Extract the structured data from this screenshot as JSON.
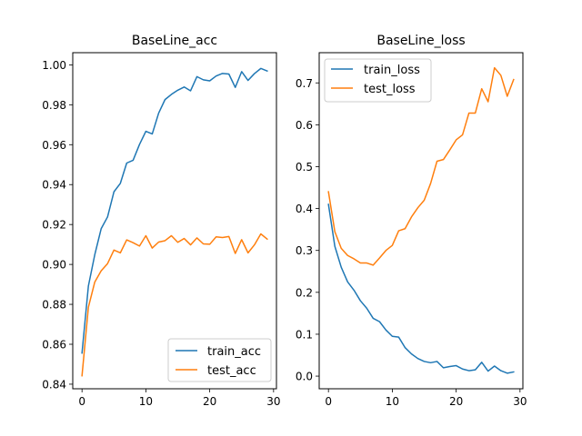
{
  "chart_data": [
    {
      "type": "line",
      "title": "BaseLine_acc",
      "xlabel": "",
      "ylabel": "",
      "xlim": [
        -1.45,
        30.45
      ],
      "ylim": [
        0.8377,
        1.0061
      ],
      "xticks": [
        0,
        10,
        20,
        30
      ],
      "yticks": [
        0.84,
        0.86,
        0.88,
        0.9,
        0.92,
        0.94,
        0.96,
        0.98,
        1.0
      ],
      "ytick_labels": [
        "0.84",
        "0.86",
        "0.88",
        "0.90",
        "0.92",
        "0.94",
        "0.96",
        "0.98",
        "1.00"
      ],
      "grid": false,
      "legend": "lower-right",
      "x": [
        0,
        1,
        2,
        3,
        4,
        5,
        6,
        7,
        8,
        9,
        10,
        11,
        12,
        13,
        14,
        15,
        16,
        17,
        18,
        19,
        20,
        21,
        22,
        23,
        24,
        25,
        26,
        27,
        28,
        29
      ],
      "series": [
        {
          "name": "train_acc",
          "color": "#1f77b4",
          "values": [
            0.8556,
            0.8892,
            0.9049,
            0.9179,
            0.9238,
            0.9364,
            0.9406,
            0.9508,
            0.9522,
            0.9601,
            0.9667,
            0.9654,
            0.9758,
            0.9826,
            0.9852,
            0.9873,
            0.9889,
            0.987,
            0.9941,
            0.9925,
            0.992,
            0.9944,
            0.9957,
            0.9954,
            0.9887,
            0.9966,
            0.9922,
            0.9956,
            0.9982,
            0.9969
          ]
        },
        {
          "name": "test_acc",
          "color": "#ff7f0e",
          "values": [
            0.8442,
            0.8786,
            0.8912,
            0.8968,
            0.9004,
            0.9072,
            0.9058,
            0.9123,
            0.9109,
            0.9092,
            0.9144,
            0.9082,
            0.9112,
            0.9119,
            0.9144,
            0.9111,
            0.913,
            0.9098,
            0.9133,
            0.9103,
            0.9101,
            0.9138,
            0.9135,
            0.914,
            0.9055,
            0.9124,
            0.9058,
            0.9098,
            0.9153,
            0.9127
          ]
        }
      ]
    },
    {
      "type": "line",
      "title": "BaseLine_loss",
      "xlabel": "",
      "ylabel": "",
      "xlim": [
        -1.45,
        30.45
      ],
      "ylim": [
        -0.0302,
        0.7721
      ],
      "xticks": [
        0,
        10,
        20,
        30
      ],
      "yticks": [
        0.0,
        0.1,
        0.2,
        0.3,
        0.4,
        0.5,
        0.6,
        0.7
      ],
      "ytick_labels": [
        "0.0",
        "0.1",
        "0.2",
        "0.3",
        "0.4",
        "0.5",
        "0.6",
        "0.7"
      ],
      "grid": false,
      "legend": "upper-left",
      "x": [
        0,
        1,
        2,
        3,
        4,
        5,
        6,
        7,
        8,
        9,
        10,
        11,
        12,
        13,
        14,
        15,
        16,
        17,
        18,
        19,
        20,
        21,
        22,
        23,
        24,
        25,
        26,
        27,
        28,
        29
      ],
      "series": [
        {
          "name": "train_loss",
          "color": "#1f77b4",
          "values": [
            0.41,
            0.31,
            0.26,
            0.225,
            0.205,
            0.18,
            0.162,
            0.138,
            0.13,
            0.11,
            0.095,
            0.093,
            0.068,
            0.053,
            0.042,
            0.035,
            0.032,
            0.035,
            0.02,
            0.023,
            0.025,
            0.017,
            0.013,
            0.015,
            0.033,
            0.012,
            0.024,
            0.013,
            0.007,
            0.01
          ]
        },
        {
          "name": "test_loss",
          "color": "#ff7f0e",
          "values": [
            0.44,
            0.345,
            0.305,
            0.288,
            0.28,
            0.27,
            0.27,
            0.265,
            0.282,
            0.3,
            0.312,
            0.347,
            0.352,
            0.38,
            0.402,
            0.42,
            0.46,
            0.513,
            0.517,
            0.54,
            0.564,
            0.576,
            0.628,
            0.628,
            0.686,
            0.655,
            0.736,
            0.718,
            0.668,
            0.708
          ]
        }
      ]
    }
  ]
}
